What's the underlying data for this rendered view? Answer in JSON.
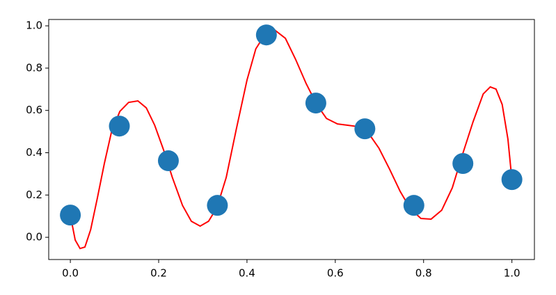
{
  "chart_data": {
    "type": "scatter",
    "xlim": [
      -0.049,
      1.051
    ],
    "ylim": [
      -0.105,
      1.03
    ],
    "xticks": [
      {
        "value": 0,
        "label": "0.0"
      },
      {
        "value": 0.2,
        "label": "0.2"
      },
      {
        "value": 0.4,
        "label": "0.4"
      },
      {
        "value": 0.6,
        "label": "0.6"
      },
      {
        "value": 0.8,
        "label": "0.8"
      },
      {
        "value": 1,
        "label": "1.0"
      }
    ],
    "yticks": [
      {
        "value": 0,
        "label": "0.0"
      },
      {
        "value": 0.2,
        "label": "0.2"
      },
      {
        "value": 0.4,
        "label": "0.4"
      },
      {
        "value": 0.6,
        "label": "0.6"
      },
      {
        "value": 0.8,
        "label": "0.8"
      },
      {
        "value": 1,
        "label": "1.0"
      }
    ],
    "grid": false,
    "series": [
      {
        "type": "line",
        "color": "#ff0000",
        "x": [
          0,
          0.011,
          0.022,
          0.033,
          0.046,
          0.061,
          0.077,
          0.093,
          0.112,
          0.132,
          0.153,
          0.172,
          0.191,
          0.211,
          0.231,
          0.254,
          0.274,
          0.294,
          0.313,
          0.332,
          0.353,
          0.376,
          0.4,
          0.42,
          0.443,
          0.463,
          0.487,
          0.51,
          0.534,
          0.558,
          0.58,
          0.605,
          0.628,
          0.652,
          0.676,
          0.699,
          0.723,
          0.747,
          0.77,
          0.794,
          0.817,
          0.841,
          0.865,
          0.888,
          0.912,
          0.935,
          0.951,
          0.964,
          0.978,
          0.991,
          1
        ],
        "values": [
          0.105,
          -0.013,
          -0.053,
          -0.046,
          0.036,
          0.184,
          0.349,
          0.497,
          0.595,
          0.638,
          0.645,
          0.612,
          0.53,
          0.414,
          0.283,
          0.151,
          0.076,
          0.053,
          0.076,
          0.141,
          0.283,
          0.513,
          0.743,
          0.891,
          0.967,
          0.98,
          0.941,
          0.842,
          0.727,
          0.628,
          0.562,
          0.536,
          0.53,
          0.523,
          0.49,
          0.421,
          0.322,
          0.217,
          0.135,
          0.089,
          0.086,
          0.128,
          0.234,
          0.391,
          0.546,
          0.678,
          0.711,
          0.701,
          0.628,
          0.464,
          0.273
        ]
      },
      {
        "type": "scatter",
        "color": "#1f77b4",
        "x": [
          0,
          0.111,
          0.222,
          0.333,
          0.444,
          0.556,
          0.667,
          0.778,
          0.889,
          1
        ],
        "values": [
          0.105,
          0.526,
          0.362,
          0.151,
          0.957,
          0.635,
          0.513,
          0.151,
          0.349,
          0.273
        ]
      }
    ]
  }
}
